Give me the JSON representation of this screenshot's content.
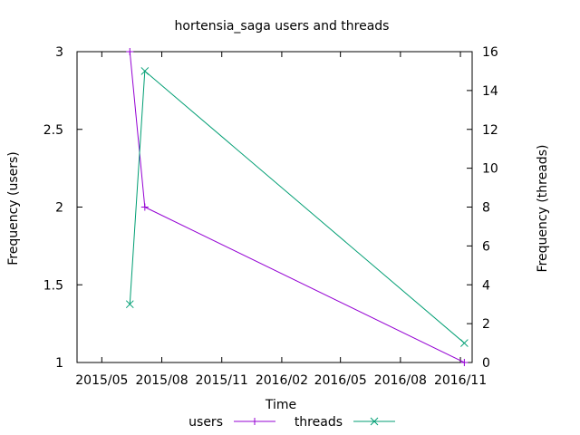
{
  "chart_data": {
    "type": "line",
    "title": "hortensia_saga users and threads",
    "xlabel": "Time",
    "ylabel_left": "Frequency (users)",
    "ylabel_right": "Frequency (threads)",
    "x_ticks": [
      "2015/05",
      "2015/08",
      "2015/11",
      "2016/02",
      "2016/05",
      "2016/08",
      "2016/11"
    ],
    "x_range": [
      "2015-03-24",
      "2016-11-19"
    ],
    "y_left_range": [
      1,
      3
    ],
    "y_left_ticks": [
      "1",
      "1.5",
      "2",
      "2.5",
      "3"
    ],
    "y_right_range": [
      0,
      16
    ],
    "y_right_ticks": [
      "0",
      "2",
      "4",
      "6",
      "8",
      "10",
      "12",
      "14",
      "16"
    ],
    "grid": false,
    "legend_position": "bottom-center",
    "series": [
      {
        "name": "users",
        "axis": "left",
        "color": "#9400d3",
        "marker": "+",
        "points": [
          {
            "x": "2015-06-13",
            "y": 3
          },
          {
            "x": "2015-07-06",
            "y": 2
          },
          {
            "x": "2016-11-07",
            "y": 1
          }
        ]
      },
      {
        "name": "threads",
        "axis": "right",
        "color": "#009e73",
        "marker": "x",
        "points": [
          {
            "x": "2015-06-13",
            "y": 3
          },
          {
            "x": "2015-07-06",
            "y": 15
          },
          {
            "x": "2016-11-07",
            "y": 1
          }
        ]
      }
    ]
  }
}
